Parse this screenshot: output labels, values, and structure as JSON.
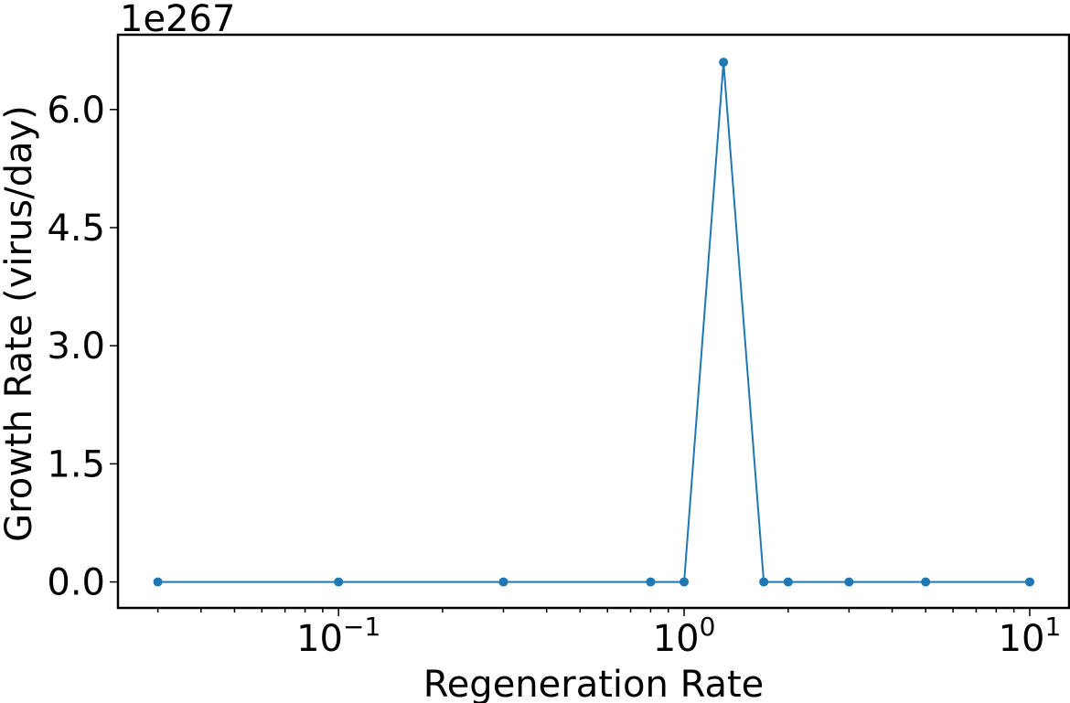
{
  "chart_data": {
    "type": "line",
    "title": "",
    "xlabel": "Regeneration Rate",
    "ylabel": "Growth Rate (virus/day)",
    "x_scale": "log",
    "y_offset_label": "1e267",
    "xlim": [
      0.023,
      13.0
    ],
    "ylim": [
      -0.33,
      6.95
    ],
    "x_ticks": [
      {
        "value": 0.1,
        "base": "10",
        "exp": "−1"
      },
      {
        "value": 1,
        "base": "10",
        "exp": "0"
      },
      {
        "value": 10,
        "base": "10",
        "exp": "1"
      }
    ],
    "y_ticks": [
      {
        "value": 0.0,
        "label": "0.0"
      },
      {
        "value": 1.5,
        "label": "1.5"
      },
      {
        "value": 3.0,
        "label": "3.0"
      },
      {
        "value": 4.5,
        "label": "4.5"
      },
      {
        "value": 6.0,
        "label": "6.0"
      }
    ],
    "grid": false,
    "series": [
      {
        "color": "#1f77b4",
        "marker": "circle",
        "x": [
          0.03,
          0.1,
          0.3,
          0.8,
          1.0,
          1.3,
          1.7,
          2.0,
          3.0,
          5.0,
          10.0
        ],
        "y": [
          0,
          0,
          0,
          0,
          0,
          6.6,
          0,
          0,
          0,
          0,
          0
        ]
      }
    ]
  }
}
